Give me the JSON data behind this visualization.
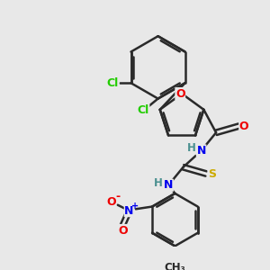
{
  "background_color": "#e8e8e8",
  "bond_color": "#2a2a2a",
  "bond_width": 1.8,
  "atom_colors": {
    "C": "#2a2a2a",
    "H": "#4a9090",
    "N": "#0000ee",
    "O": "#ee0000",
    "S": "#ccaa00",
    "Cl": "#22cc00"
  },
  "figsize": [
    3.0,
    3.0
  ],
  "dpi": 100,
  "xlim": [
    0,
    300
  ],
  "ylim": [
    0,
    300
  ]
}
